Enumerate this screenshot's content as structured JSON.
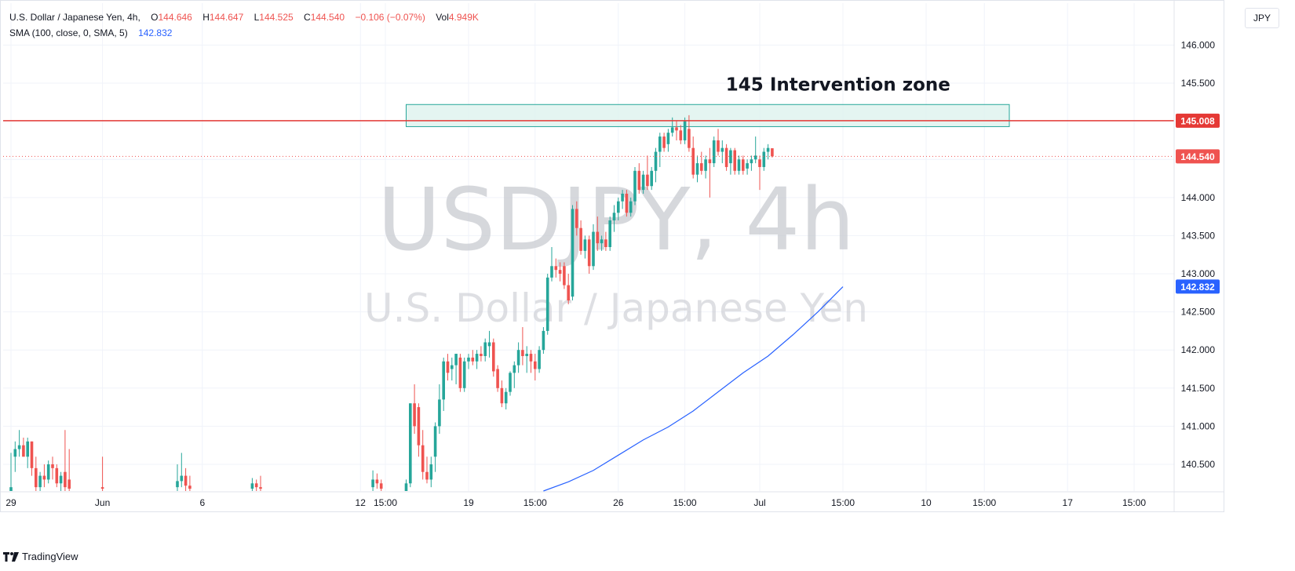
{
  "legend": {
    "symbol": "U.S. Dollar / Japanese Yen, 4h,",
    "open_label": "O",
    "open": "144.646",
    "high_label": "H",
    "high": "144.647",
    "low_label": "L",
    "low": "144.525",
    "close_label": "C",
    "close": "144.540",
    "change": "−0.106 (−0.07%)",
    "vol_label": "Vol",
    "vol": "4.949K",
    "sma_label": "SMA (100, close, 0, SMA, 5)",
    "sma_value": "142.832"
  },
  "currency": "JPY",
  "brand": "TradingView",
  "watermark": {
    "ticker": "USDJPY, 4h",
    "name": "U.S. Dollar / Japanese Yen"
  },
  "colors": {
    "up": "#26a69a",
    "down": "#ef5350",
    "sma": "#2962ff",
    "level": "#e53935",
    "zone_fill": "#dff3ee",
    "zone_border": "#26a69a",
    "grid": "#f0f3fa"
  },
  "chart_data": {
    "type": "candlestick",
    "ylim": [
      140.15,
      146.55
    ],
    "y_ticks": [
      140.5,
      141.0,
      141.5,
      142.0,
      142.5,
      143.0,
      143.5,
      144.0,
      144.5,
      145.0,
      145.5,
      146.0
    ],
    "x_labels": [
      "29",
      "Jun",
      "6",
      "12",
      "15:00",
      "19",
      "15:00",
      "26",
      "15:00",
      "Jul",
      "15:00",
      "10",
      "15:00",
      "17",
      "15:00"
    ],
    "x_label_bar_index": [
      0,
      22,
      46,
      84,
      90,
      110,
      126,
      146,
      162,
      180,
      200,
      220,
      234,
      254,
      270
    ],
    "bars_total_span": 280,
    "annotation": "145 Intervention zone",
    "zone": {
      "from_bar": 95,
      "to_bar": 240,
      "top": 145.22,
      "bottom": 144.93
    },
    "level_line": {
      "value": 145.008,
      "label": "145.008"
    },
    "last_price": {
      "value": 144.54,
      "label": "144.540"
    },
    "sma_label": {
      "value": 142.832,
      "label": "142.832"
    },
    "sma": {
      "name": "SMA (100, close, 0, SMA, 5)",
      "bar_index": [
        128,
        134,
        140,
        146,
        152,
        158,
        164,
        170,
        176,
        182,
        188,
        194,
        200
      ],
      "values": [
        140.15,
        140.27,
        140.42,
        140.62,
        140.82,
        140.99,
        141.2,
        141.45,
        141.7,
        141.92,
        142.2,
        142.5,
        142.83
      ]
    },
    "candles": [
      [
        0,
        140.15,
        140.65,
        140.15,
        140.2
      ],
      [
        1,
        140.6,
        140.8,
        140.4,
        140.7
      ],
      [
        2,
        140.7,
        140.95,
        140.6,
        140.75
      ],
      [
        3,
        140.75,
        140.85,
        140.6,
        140.6
      ],
      [
        4,
        140.6,
        140.85,
        140.45,
        140.8
      ],
      [
        5,
        140.8,
        140.8,
        140.35,
        140.45
      ],
      [
        6,
        140.45,
        140.6,
        140.15,
        140.2
      ],
      [
        7,
        140.2,
        140.4,
        140.15,
        140.35
      ],
      [
        8,
        140.35,
        140.5,
        140.2,
        140.3
      ],
      [
        9,
        140.3,
        140.55,
        140.25,
        140.5
      ],
      [
        10,
        140.5,
        140.6,
        140.3,
        140.45
      ],
      [
        11,
        140.45,
        140.5,
        140.2,
        140.25
      ],
      [
        12,
        140.25,
        140.4,
        140.15,
        140.35
      ],
      [
        13,
        140.4,
        140.95,
        140.15,
        140.2
      ],
      [
        14,
        140.3,
        140.7,
        140.15,
        140.18
      ],
      [
        22,
        140.2,
        140.6,
        140.15,
        140.18
      ],
      [
        40,
        140.2,
        140.5,
        140.15,
        140.28
      ],
      [
        41,
        140.28,
        140.65,
        140.2,
        140.35
      ],
      [
        42,
        140.35,
        140.45,
        140.15,
        140.22
      ],
      [
        43,
        140.22,
        140.35,
        140.15,
        140.18
      ],
      [
        58,
        140.18,
        140.32,
        140.15,
        140.25
      ],
      [
        59,
        140.25,
        140.3,
        140.15,
        140.2
      ],
      [
        60,
        140.2,
        140.35,
        140.15,
        140.18
      ],
      [
        87,
        140.2,
        140.42,
        140.15,
        140.3
      ],
      [
        88,
        140.3,
        140.38,
        140.18,
        140.25
      ],
      [
        89,
        140.25,
        140.3,
        140.15,
        140.18
      ],
      [
        95,
        140.15,
        140.3,
        140.15,
        140.25
      ],
      [
        96,
        140.25,
        141.3,
        140.2,
        141.3
      ],
      [
        97,
        141.3,
        141.55,
        140.9,
        141.0
      ],
      [
        98,
        141.25,
        141.3,
        140.6,
        140.75
      ],
      [
        99,
        140.75,
        140.95,
        140.3,
        140.4
      ],
      [
        100,
        140.4,
        140.6,
        140.25,
        140.3
      ],
      [
        101,
        140.3,
        140.6,
        140.2,
        140.5
      ],
      [
        102,
        140.6,
        141.05,
        140.4,
        141.0
      ],
      [
        103,
        141.0,
        141.55,
        140.9,
        141.35
      ],
      [
        104,
        141.35,
        141.9,
        141.2,
        141.85
      ],
      [
        105,
        141.85,
        141.95,
        141.6,
        141.7
      ],
      [
        106,
        141.75,
        141.9,
        141.6,
        141.8
      ],
      [
        107,
        141.8,
        141.95,
        141.55,
        141.95
      ],
      [
        108,
        141.9,
        141.95,
        141.45,
        141.5
      ],
      [
        109,
        141.5,
        141.9,
        141.45,
        141.85
      ],
      [
        110,
        141.85,
        141.95,
        141.75,
        141.9
      ],
      [
        111,
        141.9,
        142.0,
        141.8,
        141.85
      ],
      [
        112,
        141.85,
        142.0,
        141.75,
        141.95
      ],
      [
        113,
        141.95,
        142.05,
        141.85,
        141.92
      ],
      [
        114,
        141.92,
        142.15,
        141.85,
        142.1
      ],
      [
        115,
        142.05,
        142.25,
        141.9,
        142.1
      ],
      [
        116,
        142.1,
        142.15,
        141.65,
        141.72
      ],
      [
        117,
        141.75,
        141.8,
        141.45,
        141.5
      ],
      [
        118,
        141.5,
        141.6,
        141.25,
        141.3
      ],
      [
        119,
        141.3,
        141.5,
        141.22,
        141.45
      ],
      [
        120,
        141.45,
        141.72,
        141.4,
        141.7
      ],
      [
        121,
        141.7,
        141.85,
        141.5,
        141.8
      ],
      [
        122,
        141.8,
        142.1,
        141.7,
        142.0
      ],
      [
        123,
        142.0,
        142.3,
        141.8,
        141.92
      ],
      [
        124,
        141.92,
        142.05,
        141.7,
        141.95
      ],
      [
        125,
        141.95,
        142.0,
        141.7,
        141.85
      ],
      [
        126,
        141.85,
        141.95,
        141.6,
        141.75
      ],
      [
        127,
        141.75,
        142.05,
        141.7,
        142.0
      ],
      [
        128,
        142.0,
        142.3,
        141.95,
        142.25
      ],
      [
        129,
        142.25,
        143.0,
        142.2,
        142.95
      ],
      [
        130,
        142.95,
        143.35,
        142.9,
        143.1
      ],
      [
        131,
        143.1,
        143.2,
        142.95,
        143.05
      ],
      [
        132,
        143.05,
        143.15,
        142.9,
        143.0
      ],
      [
        133,
        143.1,
        143.15,
        142.8,
        142.85
      ],
      [
        134,
        142.85,
        143.0,
        142.6,
        142.65
      ],
      [
        135,
        142.7,
        143.9,
        142.65,
        143.85
      ],
      [
        136,
        143.85,
        143.95,
        143.5,
        143.6
      ],
      [
        137,
        143.6,
        143.7,
        143.25,
        143.3
      ],
      [
        138,
        143.3,
        143.5,
        143.2,
        143.45
      ],
      [
        139,
        143.45,
        143.5,
        143.0,
        143.1
      ],
      [
        140,
        143.1,
        143.65,
        143.05,
        143.55
      ],
      [
        141,
        143.55,
        143.75,
        143.3,
        143.4
      ],
      [
        142,
        143.4,
        143.5,
        143.3,
        143.45
      ],
      [
        143,
        143.45,
        143.55,
        143.3,
        143.35
      ],
      [
        144,
        143.35,
        143.75,
        143.3,
        143.7
      ],
      [
        145,
        143.7,
        143.9,
        143.55,
        143.8
      ],
      [
        146,
        143.8,
        144.0,
        143.7,
        143.95
      ],
      [
        147,
        143.95,
        144.1,
        143.85,
        144.05
      ],
      [
        148,
        144.05,
        144.1,
        143.75,
        143.8
      ],
      [
        149,
        143.8,
        144.0,
        143.75,
        143.95
      ],
      [
        150,
        143.95,
        144.4,
        143.9,
        144.35
      ],
      [
        151,
        144.35,
        144.45,
        144.05,
        144.1
      ],
      [
        152,
        144.1,
        144.35,
        144.05,
        144.3
      ],
      [
        153,
        144.3,
        144.55,
        144.1,
        144.15
      ],
      [
        154,
        144.15,
        144.4,
        144.1,
        144.35
      ],
      [
        155,
        144.35,
        144.65,
        144.2,
        144.6
      ],
      [
        156,
        144.6,
        144.85,
        144.4,
        144.8
      ],
      [
        157,
        144.8,
        144.85,
        144.6,
        144.65
      ],
      [
        158,
        144.7,
        144.9,
        144.6,
        144.85
      ],
      [
        159,
        144.85,
        145.05,
        144.8,
        144.92
      ],
      [
        160,
        144.92,
        145.0,
        144.75,
        144.88
      ],
      [
        161,
        144.88,
        144.95,
        144.7,
        144.75
      ],
      [
        162,
        144.75,
        145.05,
        144.7,
        145.0
      ],
      [
        163,
        144.9,
        145.08,
        144.6,
        144.65
      ],
      [
        164,
        144.65,
        144.8,
        144.25,
        144.3
      ],
      [
        165,
        144.3,
        144.55,
        144.2,
        144.45
      ],
      [
        166,
        144.45,
        144.6,
        144.3,
        144.35
      ],
      [
        167,
        144.35,
        144.55,
        144.25,
        144.5
      ],
      [
        168,
        144.5,
        144.65,
        144.0,
        144.45
      ],
      [
        169,
        144.45,
        144.8,
        144.4,
        144.75
      ],
      [
        170,
        144.75,
        144.9,
        144.55,
        144.6
      ],
      [
        171,
        144.6,
        144.75,
        144.45,
        144.65
      ],
      [
        172,
        144.65,
        144.7,
        144.35,
        144.4
      ],
      [
        173,
        144.45,
        144.65,
        144.3,
        144.62
      ],
      [
        174,
        144.62,
        144.65,
        144.3,
        144.35
      ],
      [
        175,
        144.35,
        144.55,
        144.3,
        144.5
      ],
      [
        176,
        144.5,
        144.55,
        144.3,
        144.35
      ],
      [
        177,
        144.38,
        144.5,
        144.3,
        144.45
      ],
      [
        178,
        144.45,
        144.55,
        144.35,
        144.5
      ],
      [
        179,
        144.5,
        144.8,
        144.45,
        144.55
      ],
      [
        180,
        144.5,
        144.55,
        144.1,
        144.4
      ],
      [
        181,
        144.4,
        144.65,
        144.35,
        144.6
      ],
      [
        182,
        144.6,
        144.7,
        144.5,
        144.65
      ],
      [
        183,
        144.646,
        144.647,
        144.525,
        144.54
      ]
    ]
  }
}
